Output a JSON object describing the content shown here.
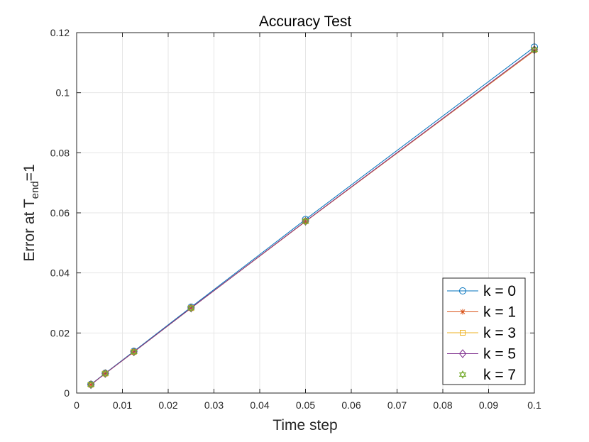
{
  "chart_data": {
    "type": "line",
    "title": "Accuracy Test",
    "xlabel": "Time step",
    "ylabel": {
      "prefix": "Error at T",
      "subscript": "end",
      "suffix": "=1"
    },
    "xlim": [
      0,
      0.1
    ],
    "ylim": [
      0,
      0.12
    ],
    "xticks": [
      0,
      0.01,
      0.02,
      0.03,
      0.04,
      0.05,
      0.06,
      0.07,
      0.08,
      0.09,
      0.1
    ],
    "xtick_labels": [
      "0",
      "0.01",
      "0.02",
      "0.03",
      "0.04",
      "0.05",
      "0.06",
      "0.07",
      "0.08",
      "0.09",
      "0.1"
    ],
    "yticks": [
      0,
      0.02,
      0.04,
      0.06,
      0.08,
      0.1,
      0.12
    ],
    "ytick_labels": [
      "0",
      "0.02",
      "0.04",
      "0.06",
      "0.08",
      "0.1",
      "0.12"
    ],
    "grid": true,
    "legend_position": "bottom-right",
    "x": [
      0.003125,
      0.00625,
      0.0125,
      0.025,
      0.05,
      0.1
    ],
    "series": [
      {
        "name": "k = 0",
        "color": "#0072bd",
        "marker": "circle",
        "line": true,
        "values": [
          0.0029,
          0.0066,
          0.0139,
          0.0286,
          0.0578,
          0.1152
        ]
      },
      {
        "name": "k = 1",
        "color": "#d95319",
        "marker": "asterisk",
        "line": true,
        "values": [
          0.0028,
          0.0065,
          0.0137,
          0.0283,
          0.0571,
          0.114
        ]
      },
      {
        "name": "k = 3",
        "color": "#edb120",
        "marker": "square",
        "line": true,
        "values": [
          0.0028,
          0.0065,
          0.0137,
          0.0283,
          0.0572,
          0.1142
        ]
      },
      {
        "name": "k = 5",
        "color": "#7e2f8e",
        "marker": "diamond",
        "line": true,
        "values": [
          0.0028,
          0.0065,
          0.0137,
          0.0283,
          0.0572,
          0.1143
        ]
      },
      {
        "name": "k = 7",
        "color": "#77ac30",
        "marker": "hexagram",
        "line": false,
        "values": [
          0.0028,
          0.0065,
          0.0137,
          0.0283,
          0.0572,
          0.1143
        ]
      }
    ]
  }
}
